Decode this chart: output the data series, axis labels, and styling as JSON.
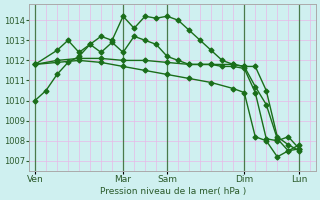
{
  "background_color": "#cff0f0",
  "grid_color_h": "#e8b8e8",
  "grid_color_v": "#e8b8e8",
  "line_color": "#1a6e1a",
  "marker": "D",
  "marker_size": 2.5,
  "line_width": 1.0,
  "xlabel": "Pression niveau de la mer( hPa )",
  "ylim": [
    1006.5,
    1014.8
  ],
  "yticks": [
    1007,
    1008,
    1009,
    1010,
    1011,
    1012,
    1013,
    1014
  ],
  "day_labels": [
    "Ven",
    "Mar",
    "Sam",
    "Dim",
    "Lun"
  ],
  "day_positions": [
    0,
    8,
    12,
    19,
    24
  ],
  "vline_positions": [
    0,
    8,
    12,
    19,
    24
  ],
  "num_x_grid": 25,
  "xlim": [
    -0.5,
    25.5
  ],
  "series": [
    {
      "x": [
        0,
        1,
        2,
        3,
        4,
        5,
        6,
        7,
        8,
        9,
        10,
        11,
        12,
        13,
        14,
        15,
        16,
        17,
        18,
        19,
        20,
        21,
        22,
        23,
        24
      ],
      "y": [
        1010.0,
        1010.5,
        1011.3,
        1011.9,
        1012.2,
        1012.8,
        1013.2,
        1013.0,
        1014.2,
        1013.6,
        1014.2,
        1014.1,
        1014.2,
        1014.0,
        1013.5,
        1013.0,
        1012.5,
        1012.0,
        1011.8,
        1011.7,
        1010.7,
        1009.8,
        1008.1,
        1007.5,
        1007.8
      ]
    },
    {
      "x": [
        0,
        2,
        4,
        6,
        8,
        10,
        12,
        14,
        16,
        18,
        19,
        20,
        21,
        22,
        23,
        24
      ],
      "y": [
        1011.8,
        1012.0,
        1012.1,
        1012.1,
        1012.0,
        1012.0,
        1011.9,
        1011.8,
        1011.8,
        1011.8,
        1011.7,
        1011.7,
        1010.5,
        1008.2,
        1007.8,
        1007.5
      ]
    },
    {
      "x": [
        0,
        2,
        4,
        6,
        8,
        10,
        12,
        14,
        16,
        18,
        19,
        20,
        21,
        22,
        23,
        24
      ],
      "y": [
        1011.8,
        1011.9,
        1012.0,
        1011.9,
        1011.7,
        1011.5,
        1011.3,
        1011.1,
        1010.9,
        1010.6,
        1010.4,
        1008.2,
        1008.0,
        1007.2,
        1007.5,
        1007.6
      ]
    },
    {
      "x": [
        0,
        2,
        3,
        4,
        5,
        6,
        7,
        8,
        9,
        10,
        11,
        12,
        13,
        14,
        15,
        16,
        17,
        18,
        19,
        20,
        21,
        22,
        23,
        24
      ],
      "y": [
        1011.8,
        1012.5,
        1013.0,
        1012.4,
        1012.8,
        1012.4,
        1012.9,
        1012.4,
        1013.2,
        1013.0,
        1012.8,
        1012.2,
        1012.0,
        1011.8,
        1011.8,
        1011.8,
        1011.7,
        1011.7,
        1011.6,
        1010.4,
        1008.1,
        1008.0,
        1008.2,
        1007.6
      ]
    }
  ]
}
